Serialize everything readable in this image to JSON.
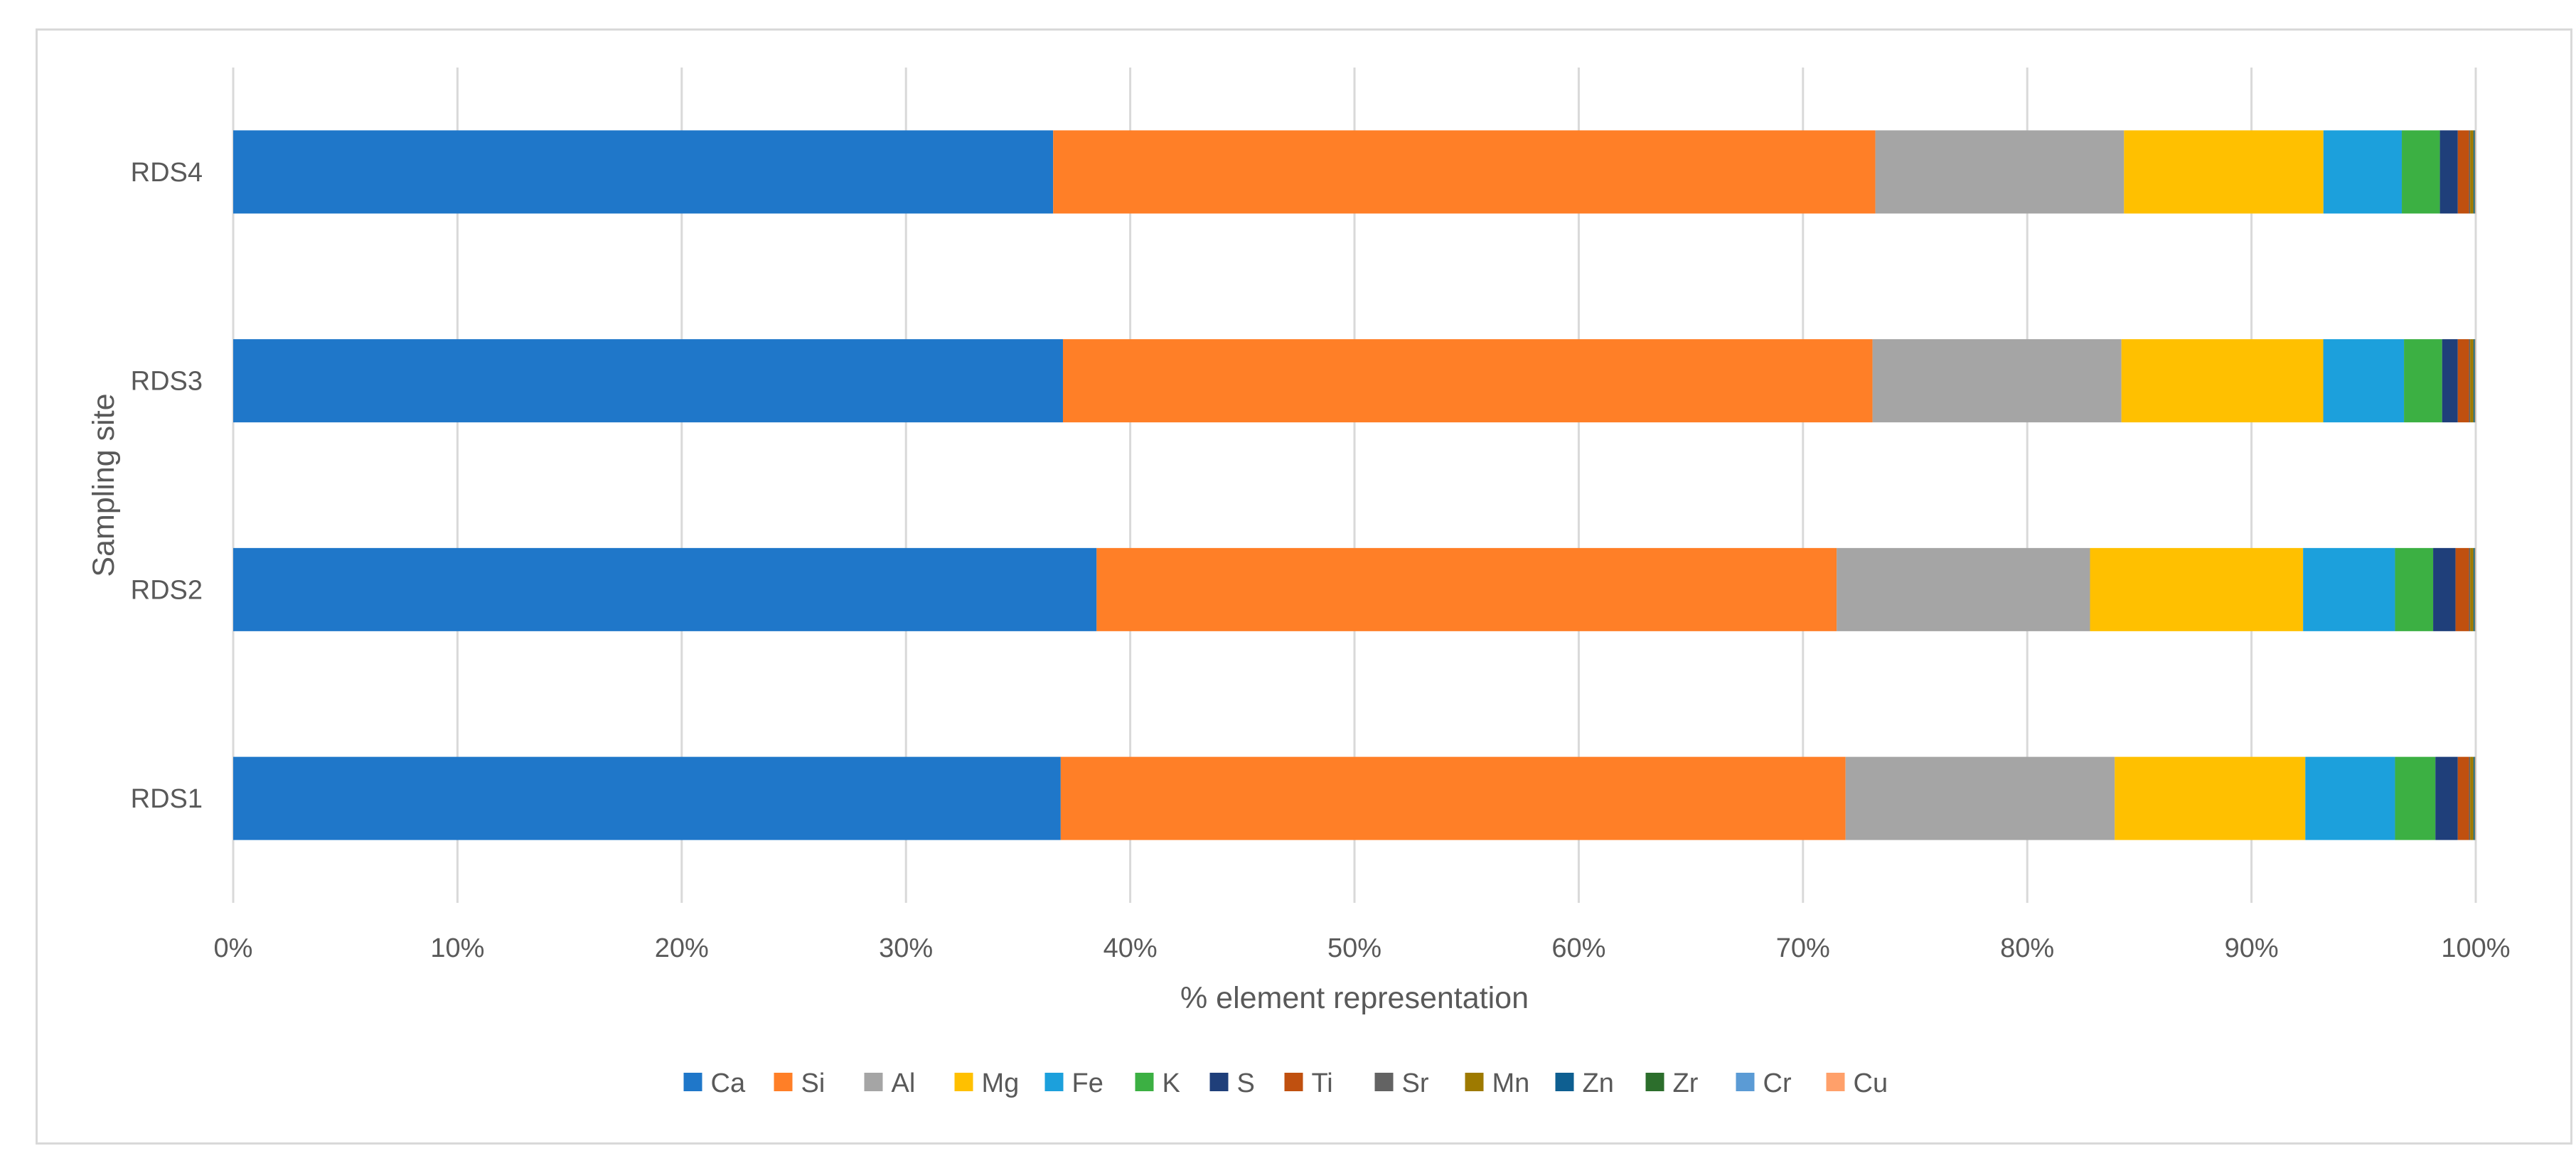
{
  "chart_data": {
    "type": "bar",
    "orientation": "horizontal",
    "stacked": "percent",
    "categories": [
      "RDS1",
      "RDS2",
      "RDS3",
      "RDS4"
    ],
    "series": [
      {
        "name": "Ca",
        "color": "#1F77C9",
        "values": [
          36.9,
          38.5,
          37.0,
          36.6
        ]
      },
      {
        "name": "Si",
        "color": "#FF7F27",
        "values": [
          35.0,
          33.0,
          36.1,
          36.7
        ]
      },
      {
        "name": "Al",
        "color": "#A5A5A5",
        "values": [
          12.0,
          11.3,
          11.1,
          11.1
        ]
      },
      {
        "name": "Mg",
        "color": "#FFC000",
        "values": [
          8.5,
          9.5,
          9.0,
          8.9
        ]
      },
      {
        "name": "Fe",
        "color": "#1CA0DC",
        "values": [
          4.0,
          4.1,
          3.6,
          3.5
        ]
      },
      {
        "name": "K",
        "color": "#3CB043",
        "values": [
          1.8,
          1.7,
          1.7,
          1.7
        ]
      },
      {
        "name": "S",
        "color": "#1F3F7A",
        "values": [
          1.0,
          1.0,
          0.7,
          0.8
        ]
      },
      {
        "name": "Ti",
        "color": "#C0500F",
        "values": [
          0.5,
          0.6,
          0.5,
          0.5
        ]
      },
      {
        "name": "Sr",
        "color": "#636363",
        "values": [
          0.05,
          0.05,
          0.05,
          0.05
        ]
      },
      {
        "name": "Mn",
        "color": "#9E7A00",
        "values": [
          0.15,
          0.15,
          0.15,
          0.15
        ]
      },
      {
        "name": "Zn",
        "color": "#0E5F91",
        "values": [
          0.04,
          0.04,
          0.04,
          0.04
        ]
      },
      {
        "name": "Zr",
        "color": "#2C6E2C",
        "values": [
          0.02,
          0.02,
          0.02,
          0.02
        ]
      },
      {
        "name": "Cr",
        "color": "#5B9BD5",
        "values": [
          0.02,
          0.02,
          0.02,
          0.02
        ]
      },
      {
        "name": "Cu",
        "color": "#FFA06A",
        "values": [
          0.02,
          0.02,
          0.02,
          0.02
        ]
      }
    ],
    "x_ticks": [
      "0%",
      "10%",
      "20%",
      "30%",
      "40%",
      "50%",
      "60%",
      "70%",
      "80%",
      "90%",
      "100%"
    ],
    "xlim": [
      0,
      100
    ],
    "xlabel": "% element representation",
    "ylabel": "Sampling site",
    "grid": "vertical",
    "legend_position": "bottom"
  }
}
